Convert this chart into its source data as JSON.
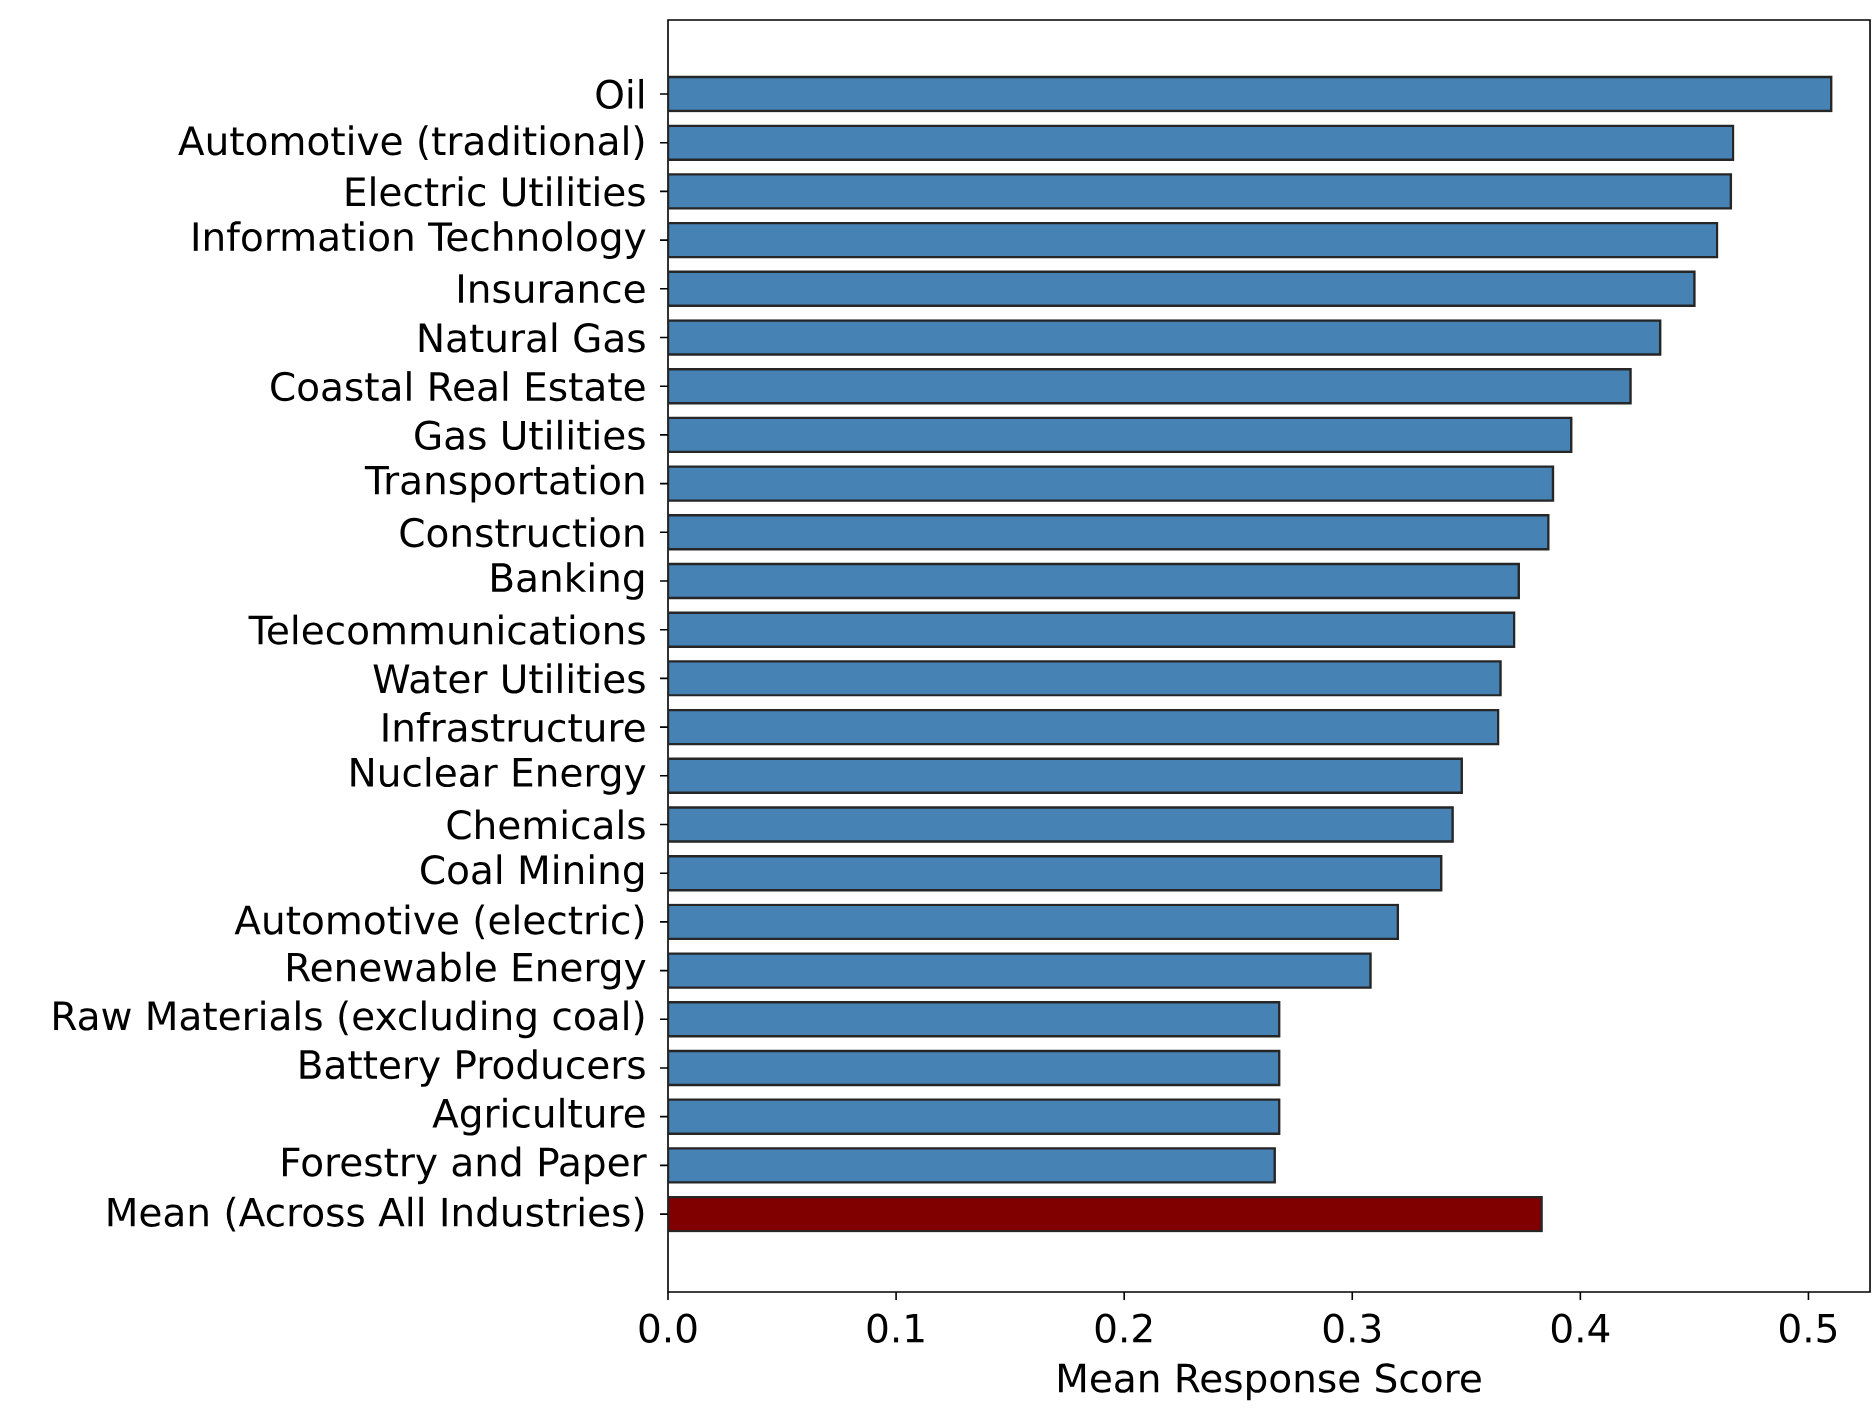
{
  "chart_data": {
    "type": "bar",
    "orientation": "horizontal",
    "xlabel": "Mean Response Score",
    "categories": [
      "Oil",
      "Automotive (traditional)",
      "Electric Utilities",
      "Information Technology",
      "Insurance",
      "Natural Gas",
      "Coastal Real Estate",
      "Gas Utilities",
      "Transportation",
      "Construction",
      "Banking",
      "Telecommunications",
      "Water Utilities",
      "Infrastructure",
      "Nuclear Energy",
      "Chemicals",
      "Coal Mining",
      "Automotive (electric)",
      "Renewable Energy",
      "Raw Materials (excluding coal)",
      "Battery Producers",
      "Agriculture",
      "Forestry and Paper",
      "Mean (Across All Industries)"
    ],
    "values": [
      0.51,
      0.467,
      0.466,
      0.46,
      0.45,
      0.435,
      0.422,
      0.396,
      0.388,
      0.386,
      0.373,
      0.371,
      0.365,
      0.364,
      0.348,
      0.344,
      0.339,
      0.32,
      0.308,
      0.268,
      0.268,
      0.268,
      0.266,
      0.383
    ],
    "colors": [
      "#4682b4",
      "#4682b4",
      "#4682b4",
      "#4682b4",
      "#4682b4",
      "#4682b4",
      "#4682b4",
      "#4682b4",
      "#4682b4",
      "#4682b4",
      "#4682b4",
      "#4682b4",
      "#4682b4",
      "#4682b4",
      "#4682b4",
      "#4682b4",
      "#4682b4",
      "#4682b4",
      "#4682b4",
      "#4682b4",
      "#4682b4",
      "#4682b4",
      "#4682b4",
      "#800000"
    ],
    "xlim": [
      0,
      0.527
    ],
    "xticks": [
      {
        "value": 0,
        "label": "0.0"
      },
      0.1,
      0.2,
      0.3,
      0.4,
      0.5
    ],
    "grid": false
  }
}
